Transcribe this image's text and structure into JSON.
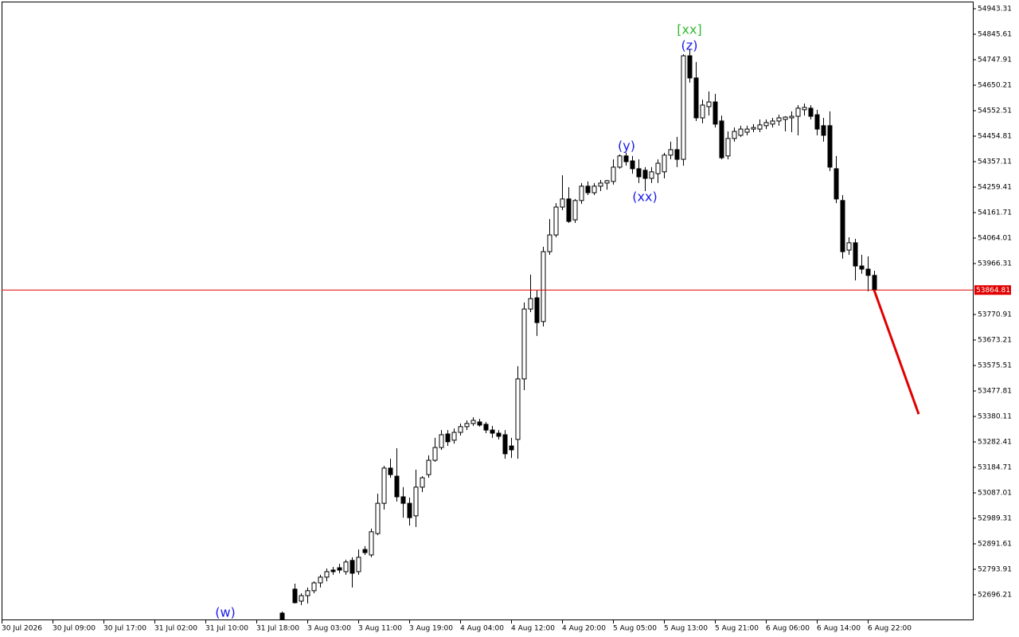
{
  "chart_data": {
    "type": "candlestick",
    "x": [
      0,
      2,
      3,
      4,
      5,
      6,
      7,
      8,
      9,
      10,
      11,
      12,
      13,
      14,
      15,
      16,
      17,
      18,
      19,
      20,
      21,
      22,
      23,
      24,
      25,
      26,
      27,
      28,
      29,
      30,
      31,
      32,
      33,
      34,
      35,
      36,
      37,
      38,
      39,
      40,
      41,
      42,
      43,
      44,
      45,
      46,
      47,
      48,
      49,
      50,
      51,
      52,
      53,
      54,
      55,
      56,
      57,
      58,
      59,
      60,
      61,
      62,
      63,
      64,
      65,
      66,
      67,
      68,
      69,
      70,
      71,
      72,
      73,
      74,
      75,
      76,
      77,
      78,
      79,
      80,
      81,
      82,
      83,
      84,
      85,
      86,
      87,
      88,
      89,
      90,
      91,
      92,
      93
    ],
    "open": [
      52626,
      52718,
      52672,
      52693,
      52712,
      52742,
      52764,
      52791,
      52800,
      52785,
      52828,
      52785,
      52870,
      52849,
      52931,
      53047,
      53182,
      53151,
      53072,
      53047,
      52999,
      53109,
      53157,
      53212,
      53261,
      53313,
      53289,
      53319,
      53341,
      53353,
      53359,
      53350,
      53328,
      53316,
      53310,
      53267,
      53292,
      53524,
      53792,
      53835,
      53744,
      54012,
      54076,
      54183,
      54214,
      54134,
      54208,
      54263,
      54238,
      54263,
      54275,
      54281,
      54336,
      54379,
      54360,
      54330,
      54324,
      54293,
      54311,
      54318,
      54382,
      54403,
      54366,
      54763,
      54678,
      54525,
      54568,
      54586,
      54513,
      54379,
      54446,
      54458,
      54470,
      54482,
      54482,
      54495,
      54501,
      54513,
      54519,
      54525,
      54531,
      54556,
      54562,
      54537,
      54495,
      54495,
      54330,
      54208,
      54018,
      54046,
      53957,
      53945,
      53921
    ],
    "high": [
      52632,
      52739,
      52702,
      52724,
      52748,
      52773,
      52797,
      52803,
      52815,
      52831,
      52840,
      52870,
      52883,
      52950,
      53084,
      53191,
      53218,
      53258,
      53109,
      53069,
      53176,
      53151,
      53231,
      53298,
      53328,
      53328,
      53334,
      53353,
      53365,
      53377,
      53371,
      53359,
      53344,
      53328,
      53328,
      53298,
      53573,
      53817,
      53924,
      53863,
      54031,
      54137,
      54198,
      54305,
      54259,
      54214,
      54275,
      54281,
      54275,
      54287,
      54287,
      54366,
      54385,
      54391,
      54379,
      54366,
      54336,
      54336,
      54366,
      54391,
      54434,
      54452,
      54769,
      54788,
      54739,
      54595,
      54626,
      54617,
      54534,
      54473,
      54488,
      54495,
      54495,
      54501,
      54519,
      54519,
      54525,
      54537,
      54531,
      54550,
      54574,
      54580,
      54574,
      54556,
      54525,
      54550,
      54379,
      54229,
      54067,
      54061,
      54000,
      53994,
      53939
    ],
    "low": [
      52602,
      52663,
      52657,
      52663,
      52702,
      52724,
      52748,
      52773,
      52779,
      52773,
      52724,
      52773,
      52849,
      52840,
      52925,
      53023,
      53145,
      53054,
      52992,
      52962,
      52956,
      53090,
      53145,
      53206,
      53252,
      53267,
      53276,
      53307,
      53328,
      53344,
      53341,
      53316,
      53298,
      53292,
      53218,
      53221,
      53218,
      53481,
      53780,
      53689,
      53725,
      54000,
      54067,
      54171,
      54122,
      54122,
      54195,
      54229,
      54229,
      54244,
      54250,
      54269,
      54330,
      54342,
      54311,
      54275,
      54244,
      54275,
      54275,
      54293,
      54366,
      54336,
      54342,
      54660,
      54513,
      54504,
      54534,
      54488,
      54366,
      54366,
      54434,
      54452,
      54458,
      54470,
      54470,
      54482,
      54488,
      54495,
      54473,
      54470,
      54458,
      54534,
      54519,
      54458,
      54434,
      54321,
      54198,
      53985,
      54000,
      53902,
      53927,
      53860,
      53860
    ],
    "close": [
      52602,
      52666,
      52693,
      52712,
      52742,
      52764,
      52785,
      52785,
      52791,
      52822,
      52779,
      52840,
      52858,
      52938,
      53047,
      53182,
      53157,
      53072,
      53047,
      52992,
      53109,
      53145,
      53212,
      53261,
      53310,
      53283,
      53319,
      53341,
      53353,
      53365,
      53347,
      53328,
      53316,
      53304,
      53237,
      53252,
      53524,
      53792,
      53832,
      53740,
      54012,
      54076,
      54183,
      54214,
      54128,
      54208,
      54263,
      54238,
      54263,
      54275,
      54284,
      54336,
      54379,
      54357,
      54330,
      54299,
      54293,
      54318,
      54351,
      54382,
      54403,
      54366,
      54763,
      54678,
      54525,
      54574,
      54586,
      54501,
      54372,
      54446,
      54473,
      54482,
      54482,
      54488,
      54498,
      54507,
      54513,
      54525,
      54528,
      54531,
      54562,
      54565,
      54531,
      54482,
      54458,
      54336,
      54214,
      54012,
      54046,
      53957,
      53945,
      53921,
      53864.81
    ],
    "current_price": 53864.81,
    "current_price_color": "#e00000",
    "forecast": {
      "x": [
        93,
        100
      ],
      "values": [
        53864.81,
        53389
      ],
      "color": "#e00000"
    },
    "annotations": [
      {
        "text": "(w)",
        "color": "#1a1ae6"
      },
      {
        "text": "(y)",
        "color": "#1a1ae6"
      },
      {
        "text": "(xx)",
        "color": "#1a1ae6"
      },
      {
        "text": "(z)",
        "color": "#1a1ae6"
      },
      {
        "text": "[xx]",
        "color": "#33bb33"
      }
    ],
    "xlim": [
      -44,
      108.5
    ],
    "ylim": [
      52601.6,
      54970.8
    ],
    "xticks": [
      {
        "value": -44,
        "label": "30 Jul 2026"
      },
      {
        "value": -36,
        "label": "30 Jul 09:00"
      },
      {
        "value": -28,
        "label": "30 Jul 17:00"
      },
      {
        "value": -20,
        "label": "31 Jul 02:00"
      },
      {
        "value": -12,
        "label": "31 Jul 10:00"
      },
      {
        "value": -4,
        "label": "31 Jul 18:00"
      },
      {
        "value": 4,
        "label": "3 Aug 03:00"
      },
      {
        "value": 12,
        "label": "3 Aug 11:00"
      },
      {
        "value": 20,
        "label": "3 Aug 19:00"
      },
      {
        "value": 28,
        "label": "4 Aug 04:00"
      },
      {
        "value": 36,
        "label": "4 Aug 12:00"
      },
      {
        "value": 44,
        "label": "4 Aug 20:00"
      },
      {
        "value": 52,
        "label": "5 Aug 05:00"
      },
      {
        "value": 60,
        "label": "5 Aug 13:00"
      },
      {
        "value": 68,
        "label": "5 Aug 21:00"
      },
      {
        "value": 76,
        "label": "6 Aug 06:00"
      },
      {
        "value": 84,
        "label": "6 Aug 14:00"
      },
      {
        "value": 92,
        "label": "6 Aug 22:00"
      }
    ],
    "yticks": [
      54943.31,
      54845.61,
      54747.91,
      54650.21,
      54552.51,
      54454.81,
      54357.11,
      54259.41,
      54161.71,
      54064.01,
      53966.31,
      53770.91,
      53673.21,
      53575.51,
      53477.81,
      53380.11,
      53282.41,
      53184.71,
      53087.01,
      52989.31,
      52891.61,
      52793.91,
      52696.21
    ]
  }
}
